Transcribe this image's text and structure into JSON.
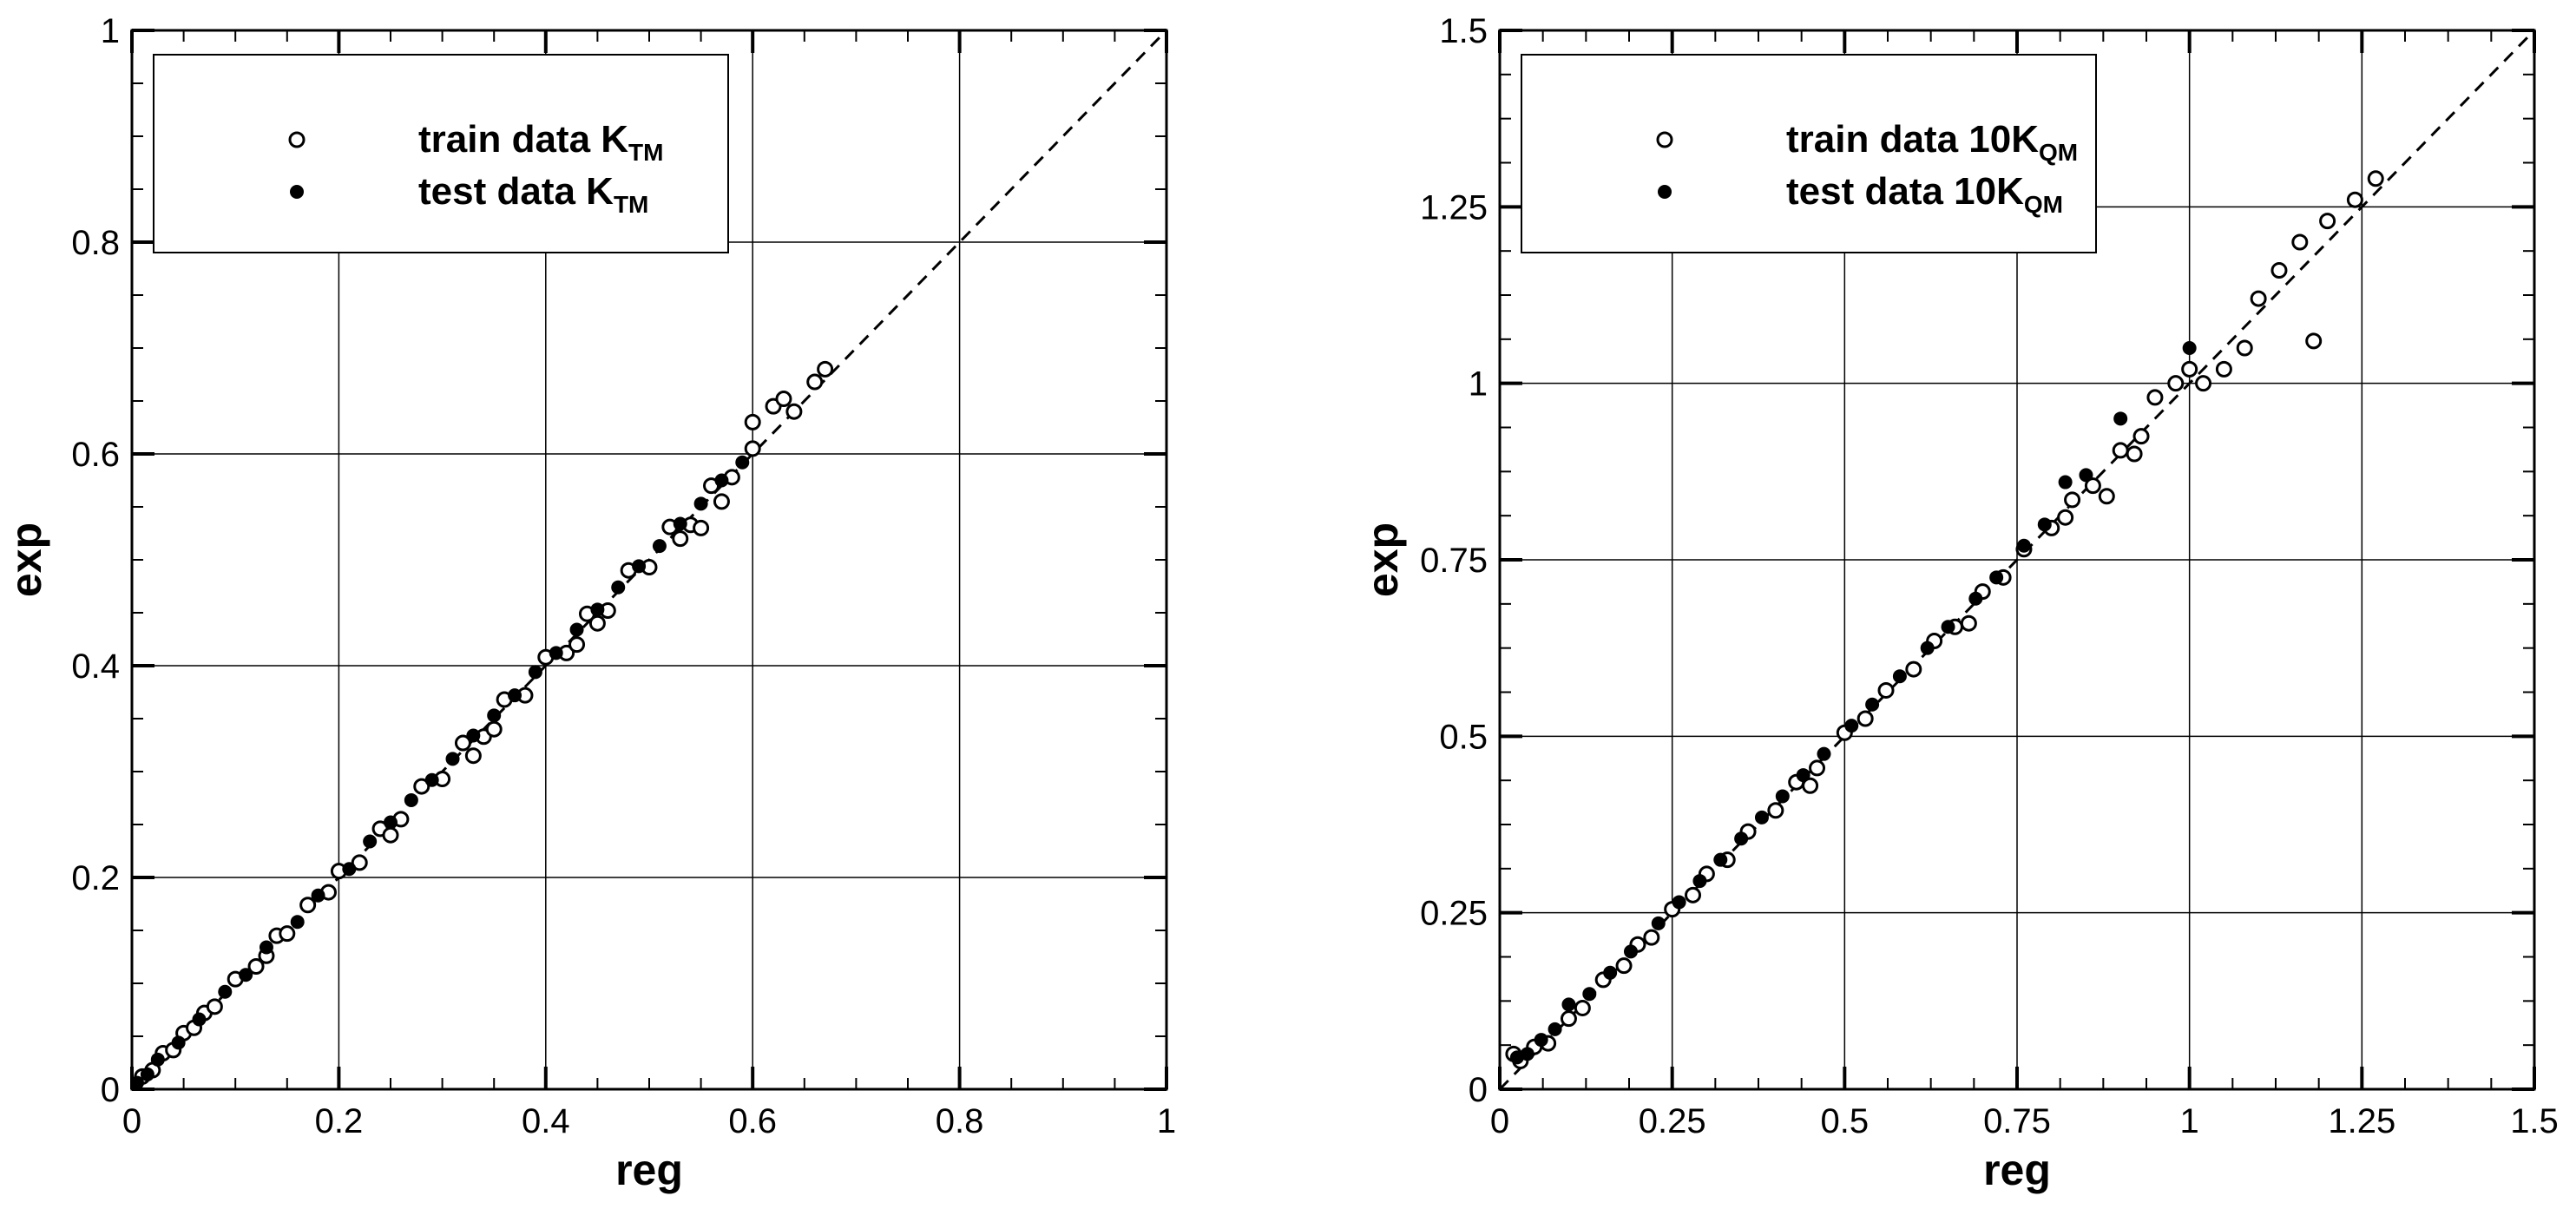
{
  "chart_data": [
    {
      "type": "scatter",
      "xlabel": "reg",
      "ylabel": "exp",
      "xlim": [
        0,
        1
      ],
      "ylim": [
        0,
        1
      ],
      "xticks": [
        0,
        0.2,
        0.4,
        0.6,
        0.8,
        1
      ],
      "yticks": [
        0,
        0.2,
        0.4,
        0.6,
        0.8,
        1
      ],
      "xtick_labels": [
        "0",
        "0.2",
        "0.4",
        "0.6",
        "0.8",
        "1"
      ],
      "ytick_labels": [
        "0",
        "0.2",
        "0.4",
        "0.6",
        "0.8",
        "1"
      ],
      "grid": true,
      "legend_position": "top-left",
      "reference_line": {
        "style": "dashed",
        "from": [
          0,
          0
        ],
        "to": [
          1,
          1
        ]
      },
      "series": [
        {
          "legend_main": "train data K",
          "legend_sub": "TM",
          "marker": "open-circle",
          "points": [
            [
              0.01,
              0.012
            ],
            [
              0.02,
              0.018
            ],
            [
              0.03,
              0.034
            ],
            [
              0.04,
              0.037
            ],
            [
              0.05,
              0.053
            ],
            [
              0.06,
              0.058
            ],
            [
              0.07,
              0.072
            ],
            [
              0.08,
              0.078
            ],
            [
              0.1,
              0.104
            ],
            [
              0.12,
              0.116
            ],
            [
              0.14,
              0.145
            ],
            [
              0.15,
              0.147
            ],
            [
              0.17,
              0.174
            ],
            [
              0.19,
              0.186
            ],
            [
              0.2,
              0.206
            ],
            [
              0.22,
              0.214
            ],
            [
              0.24,
              0.246
            ],
            [
              0.26,
              0.255
            ],
            [
              0.28,
              0.286
            ],
            [
              0.3,
              0.293
            ],
            [
              0.32,
              0.327
            ],
            [
              0.34,
              0.333
            ],
            [
              0.36,
              0.368
            ],
            [
              0.38,
              0.372
            ],
            [
              0.4,
              0.408
            ],
            [
              0.42,
              0.412
            ],
            [
              0.44,
              0.449
            ],
            [
              0.46,
              0.452
            ],
            [
              0.48,
              0.49
            ],
            [
              0.5,
              0.493
            ],
            [
              0.52,
              0.531
            ],
            [
              0.54,
              0.533
            ],
            [
              0.56,
              0.57
            ],
            [
              0.58,
              0.578
            ],
            [
              0.6,
              0.605
            ],
            [
              0.6,
              0.63
            ],
            [
              0.62,
              0.645
            ],
            [
              0.63,
              0.652
            ],
            [
              0.64,
              0.64
            ],
            [
              0.66,
              0.668
            ],
            [
              0.67,
              0.68
            ],
            [
              0.57,
              0.555
            ],
            [
              0.55,
              0.53
            ],
            [
              0.45,
              0.44
            ],
            [
              0.35,
              0.34
            ],
            [
              0.25,
              0.24
            ],
            [
              0.13,
              0.126
            ],
            [
              0.33,
              0.315
            ],
            [
              0.43,
              0.42
            ],
            [
              0.53,
              0.52
            ]
          ]
        },
        {
          "legend_main": "test data K",
          "legend_sub": "TM",
          "marker": "filled-circle",
          "points": [
            [
              0.005,
              0.006
            ],
            [
              0.015,
              0.014
            ],
            [
              0.025,
              0.028
            ],
            [
              0.045,
              0.044
            ],
            [
              0.065,
              0.066
            ],
            [
              0.09,
              0.092
            ],
            [
              0.11,
              0.108
            ],
            [
              0.13,
              0.134
            ],
            [
              0.16,
              0.158
            ],
            [
              0.18,
              0.183
            ],
            [
              0.21,
              0.208
            ],
            [
              0.23,
              0.234
            ],
            [
              0.25,
              0.252
            ],
            [
              0.27,
              0.273
            ],
            [
              0.29,
              0.292
            ],
            [
              0.31,
              0.312
            ],
            [
              0.33,
              0.334
            ],
            [
              0.35,
              0.353
            ],
            [
              0.37,
              0.372
            ],
            [
              0.39,
              0.394
            ],
            [
              0.41,
              0.412
            ],
            [
              0.43,
              0.434
            ],
            [
              0.45,
              0.453
            ],
            [
              0.47,
              0.474
            ],
            [
              0.49,
              0.494
            ],
            [
              0.51,
              0.513
            ],
            [
              0.53,
              0.534
            ],
            [
              0.55,
              0.553
            ],
            [
              0.57,
              0.575
            ],
            [
              0.59,
              0.592
            ]
          ]
        }
      ]
    },
    {
      "type": "scatter",
      "xlabel": "reg",
      "ylabel": "exp",
      "xlim": [
        0,
        1.5
      ],
      "ylim": [
        0,
        1.5
      ],
      "xticks": [
        0,
        0.25,
        0.5,
        0.75,
        1,
        1.25,
        1.5
      ],
      "yticks": [
        0,
        0.25,
        0.5,
        0.75,
        1,
        1.25,
        1.5
      ],
      "xtick_labels": [
        "0",
        "0.25",
        "0.5",
        "0.75",
        "1",
        "1.25",
        "1.5"
      ],
      "ytick_labels": [
        "0",
        "0.25",
        "0.5",
        "0.75",
        "1",
        "1.25",
        "1.5"
      ],
      "grid": true,
      "legend_position": "top-left",
      "reference_line": {
        "style": "dashed",
        "from": [
          0,
          0
        ],
        "to": [
          1.5,
          1.5
        ]
      },
      "series": [
        {
          "legend_main": "train data 10K",
          "legend_sub": "QM",
          "marker": "open-circle",
          "points": [
            [
              0.02,
              0.05
            ],
            [
              0.03,
              0.04
            ],
            [
              0.05,
              0.06
            ],
            [
              0.07,
              0.065
            ],
            [
              0.1,
              0.1
            ],
            [
              0.12,
              0.115
            ],
            [
              0.15,
              0.155
            ],
            [
              0.18,
              0.175
            ],
            [
              0.2,
              0.205
            ],
            [
              0.22,
              0.215
            ],
            [
              0.25,
              0.255
            ],
            [
              0.28,
              0.275
            ],
            [
              0.3,
              0.305
            ],
            [
              0.33,
              0.325
            ],
            [
              0.36,
              0.365
            ],
            [
              0.4,
              0.395
            ],
            [
              0.43,
              0.435
            ],
            [
              0.46,
              0.455
            ],
            [
              0.5,
              0.505
            ],
            [
              0.53,
              0.525
            ],
            [
              0.56,
              0.565
            ],
            [
              0.6,
              0.595
            ],
            [
              0.63,
              0.635
            ],
            [
              0.66,
              0.655
            ],
            [
              0.7,
              0.705
            ],
            [
              0.73,
              0.725
            ],
            [
              0.76,
              0.765
            ],
            [
              0.8,
              0.795
            ],
            [
              0.83,
              0.835
            ],
            [
              0.86,
              0.855
            ],
            [
              0.9,
              0.905
            ],
            [
              0.93,
              0.925
            ],
            [
              0.95,
              0.98
            ],
            [
              0.98,
              1.0
            ],
            [
              1.0,
              1.02
            ],
            [
              1.02,
              1.0
            ],
            [
              1.05,
              1.02
            ],
            [
              1.08,
              1.05
            ],
            [
              1.1,
              1.12
            ],
            [
              1.13,
              1.16
            ],
            [
              1.16,
              1.2
            ],
            [
              1.18,
              1.06
            ],
            [
              1.2,
              1.23
            ],
            [
              1.24,
              1.26
            ],
            [
              1.27,
              1.29
            ],
            [
              0.82,
              0.81
            ],
            [
              0.92,
              0.9
            ],
            [
              0.88,
              0.84
            ],
            [
              0.68,
              0.66
            ],
            [
              0.45,
              0.43
            ]
          ]
        },
        {
          "legend_main": "test data 10K",
          "legend_sub": "QM",
          "marker": "filled-circle",
          "points": [
            [
              0.025,
              0.045
            ],
            [
              0.04,
              0.05
            ],
            [
              0.06,
              0.07
            ],
            [
              0.08,
              0.085
            ],
            [
              0.1,
              0.12
            ],
            [
              0.13,
              0.135
            ],
            [
              0.16,
              0.165
            ],
            [
              0.19,
              0.195
            ],
            [
              0.23,
              0.235
            ],
            [
              0.26,
              0.265
            ],
            [
              0.29,
              0.295
            ],
            [
              0.32,
              0.325
            ],
            [
              0.35,
              0.355
            ],
            [
              0.38,
              0.385
            ],
            [
              0.41,
              0.415
            ],
            [
              0.44,
              0.445
            ],
            [
              0.47,
              0.475
            ],
            [
              0.51,
              0.515
            ],
            [
              0.54,
              0.545
            ],
            [
              0.58,
              0.585
            ],
            [
              0.62,
              0.625
            ],
            [
              0.65,
              0.655
            ],
            [
              0.69,
              0.695
            ],
            [
              0.72,
              0.725
            ],
            [
              0.76,
              0.77
            ],
            [
              0.79,
              0.8
            ],
            [
              0.82,
              0.86
            ],
            [
              0.85,
              0.87
            ],
            [
              0.9,
              0.95
            ],
            [
              1.0,
              1.05
            ]
          ]
        }
      ]
    }
  ]
}
